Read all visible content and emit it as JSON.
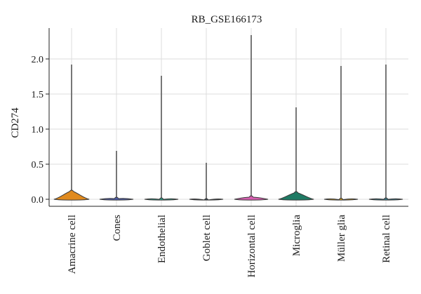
{
  "chart_data": {
    "type": "violin",
    "title": "RB_GSE166173",
    "xlabel": "",
    "ylabel": "CD274",
    "ylim": [
      -0.1,
      2.45
    ],
    "yticks": [
      "0.0",
      "0.5",
      "1.0",
      "1.5",
      "2.0"
    ],
    "grid": true,
    "categories": [
      "Amacrine cell",
      "Cones",
      "Endothelial",
      "Goblet cell",
      "Horizontal cell",
      "Microglia",
      "Müller glia",
      "Retinal cell"
    ],
    "max_values": [
      1.92,
      0.69,
      1.76,
      0.52,
      2.34,
      1.31,
      1.9,
      1.92
    ],
    "density_height": [
      0.13,
      0.03,
      0.02,
      0.01,
      0.05,
      0.11,
      0.015,
      0.02
    ],
    "colors": [
      "#e08a1e",
      "#4f5da8",
      "#2e9c88",
      "#3a4a5a",
      "#d65fb0",
      "#1f7a64",
      "#d9a01a",
      "#3a7a8a"
    ]
  }
}
